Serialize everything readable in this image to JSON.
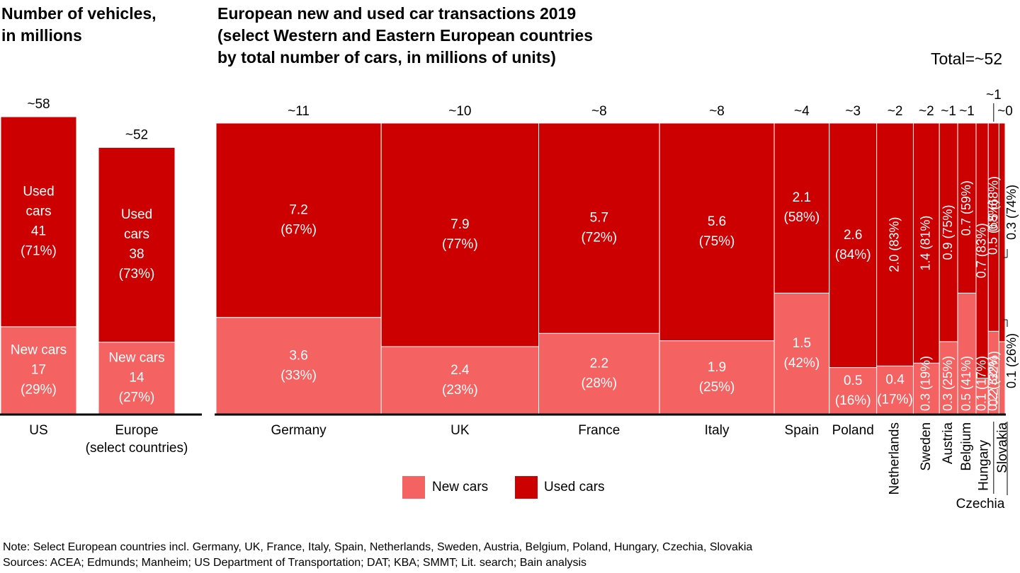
{
  "colors": {
    "new": "#F46261",
    "used": "#CC0000",
    "axis": "#000000"
  },
  "left_panel": {
    "title": "Number of vehicles,\nin millions"
  },
  "right_panel": {
    "title": "European new and used car transactions 2019\n(select Western and Eastern European countries\nby total number of cars, in millions of units)",
    "total_label": "Total=~52"
  },
  "legend": {
    "new_label": "New cars",
    "used_label": "Used cars"
  },
  "notes": {
    "note": "Note: Select European countries incl. Germany, UK, France, Italy, Spain, Netherlands, Sweden, Austria, Belgium, Poland, Hungary, Czechia, Slovakia",
    "sources": "Sources: ACEA; Edmunds; Manheim; US Department of Transportation; DAT; KBA; SMMT; Lit. search; Bain analysis"
  },
  "chart_data": [
    {
      "type": "bar",
      "stacked": true,
      "title": "Number of vehicles, in millions",
      "categories": [
        "US",
        "Europe\n(select countries)"
      ],
      "totals_label": [
        "~58",
        "~52"
      ],
      "totals": [
        58,
        52
      ],
      "series": [
        {
          "name": "New cars",
          "values": [
            17,
            14
          ],
          "pct": [
            "(29%)",
            "(27%)"
          ]
        },
        {
          "name": "Used cars",
          "values": [
            41,
            38
          ],
          "pct": [
            "(71%)",
            "(73%)"
          ]
        }
      ]
    },
    {
      "type": "bar",
      "stacked": true,
      "variant": "marimekko",
      "title": "European new and used car transactions 2019 (select Western and Eastern European countries by total number of cars, in millions of units)",
      "total": "Total=~52",
      "categories": [
        "Germany",
        "UK",
        "France",
        "Italy",
        "Spain",
        "Poland",
        "Netherlands",
        "Sweden",
        "Austria",
        "Belgium",
        "Hungary",
        "Czechia",
        "Slovakia"
      ],
      "totals_label": [
        "~11",
        "~10",
        "~8",
        "~8",
        "~4",
        "~3",
        "~2",
        "~2",
        "~1",
        "~1",
        "~1",
        "~1",
        "~0"
      ],
      "series": [
        {
          "name": "New cars",
          "values": [
            3.6,
            2.4,
            2.2,
            1.9,
            1.5,
            0.5,
            0.4,
            0.3,
            0.3,
            0.5,
            0.1,
            0.2,
            0.1
          ],
          "labels": [
            "3.6",
            "2.4",
            "2.2",
            "1.9",
            "1.5",
            "0.5",
            "0.4",
            "0.3",
            "0.3",
            "0.5",
            "0.1",
            "0.2",
            "0.1"
          ],
          "pct": [
            "(33%)",
            "(23%)",
            "(28%)",
            "(25%)",
            "(42%)",
            "(16%)",
            "(17%)",
            "(19%)",
            "(25%)",
            "(41%)",
            "(17%)",
            "(32%)",
            "(26%)"
          ]
        },
        {
          "name": "Used cars",
          "values": [
            7.2,
            7.9,
            5.7,
            5.6,
            2.1,
            2.6,
            2.0,
            1.4,
            0.9,
            0.7,
            0.7,
            0.5,
            0.3
          ],
          "labels": [
            "7.2",
            "7.9",
            "5.7",
            "5.6",
            "2.1",
            "2.6",
            "2.0",
            "1.4",
            "0.9",
            "0.7",
            "0.7",
            "0.5",
            "0.3"
          ],
          "pct": [
            "(67%)",
            "(77%)",
            "(72%)",
            "(75%)",
            "(58%)",
            "(84%)",
            "(83%)",
            "(81%)",
            "(75%)",
            "(59%)",
            "(83%)",
            "(68%)",
            "(74%)"
          ]
        }
      ]
    }
  ]
}
